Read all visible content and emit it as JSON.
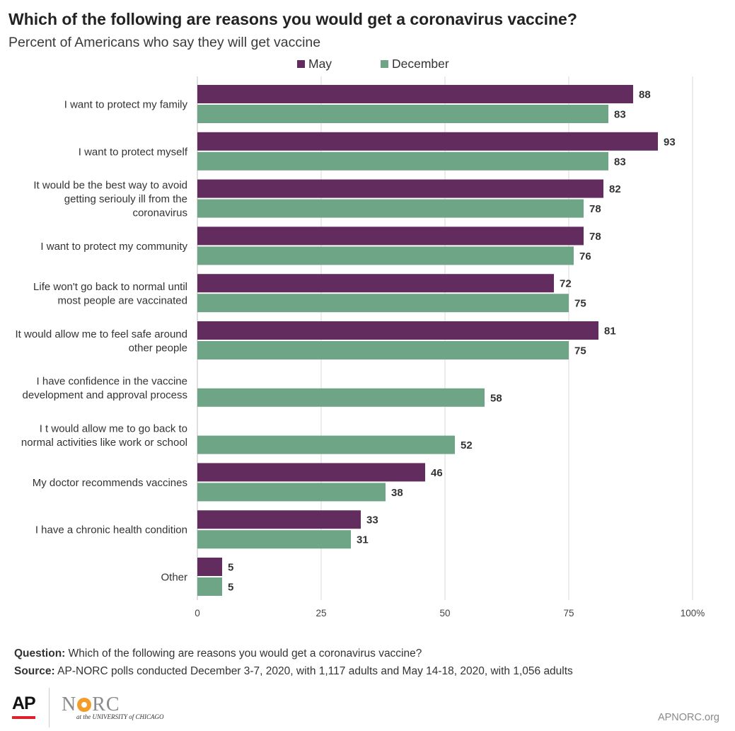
{
  "title": "Which of the following are reasons you would get a coronavirus vaccine?",
  "subtitle": "Percent of Americans who say they will get vaccine",
  "legend": {
    "may": {
      "label": "May",
      "color": "#632c5f"
    },
    "december": {
      "label": "December",
      "color": "#6fa587"
    }
  },
  "chart_data": {
    "type": "bar",
    "orientation": "horizontal",
    "categories": [
      [
        "I want to protect my family"
      ],
      [
        "I want to protect myself"
      ],
      [
        "It would be the best way to avoid",
        "getting seriouly ill from the",
        "coronavirus"
      ],
      [
        "I want to protect my community"
      ],
      [
        "Life won't go back to normal until",
        "most people are vaccinated"
      ],
      [
        "It would allow me to feel safe around",
        "other people"
      ],
      [
        "I have confidence in the vaccine",
        "development and approval process"
      ],
      [
        "I t would allow me to go back to",
        "normal activities like work or school"
      ],
      [
        "My doctor recommends vaccines"
      ],
      [
        "I have a chronic health condition"
      ],
      [
        "Other"
      ]
    ],
    "series": [
      {
        "name": "May",
        "color": "#632c5f",
        "values": [
          88,
          93,
          82,
          78,
          72,
          81,
          null,
          null,
          46,
          33,
          5
        ]
      },
      {
        "name": "December",
        "color": "#6fa587",
        "values": [
          83,
          83,
          78,
          76,
          75,
          75,
          58,
          52,
          38,
          31,
          5
        ]
      }
    ],
    "xlim": [
      0,
      100
    ],
    "x_ticks": [
      0,
      25,
      50,
      75,
      100
    ],
    "x_tick_labels": [
      "0",
      "25",
      "50",
      "75",
      "100%"
    ],
    "grid": true,
    "legend_position": "top"
  },
  "footer": {
    "question_label": "Question:",
    "question_text": " Which of the following are reasons you would get a coronavirus vaccine?",
    "source_label": "Source:",
    "source_text": " AP-NORC polls conducted December 3-7, 2020, with 1,117 adults and May 14-18, 2020, with 1,056 adults"
  },
  "logos": {
    "ap": "AP",
    "norc_n": "N",
    "norc_rc": "RC",
    "uchicago": "at the UNIVERSITY of CHICAGO"
  },
  "site": "APNORC.org"
}
